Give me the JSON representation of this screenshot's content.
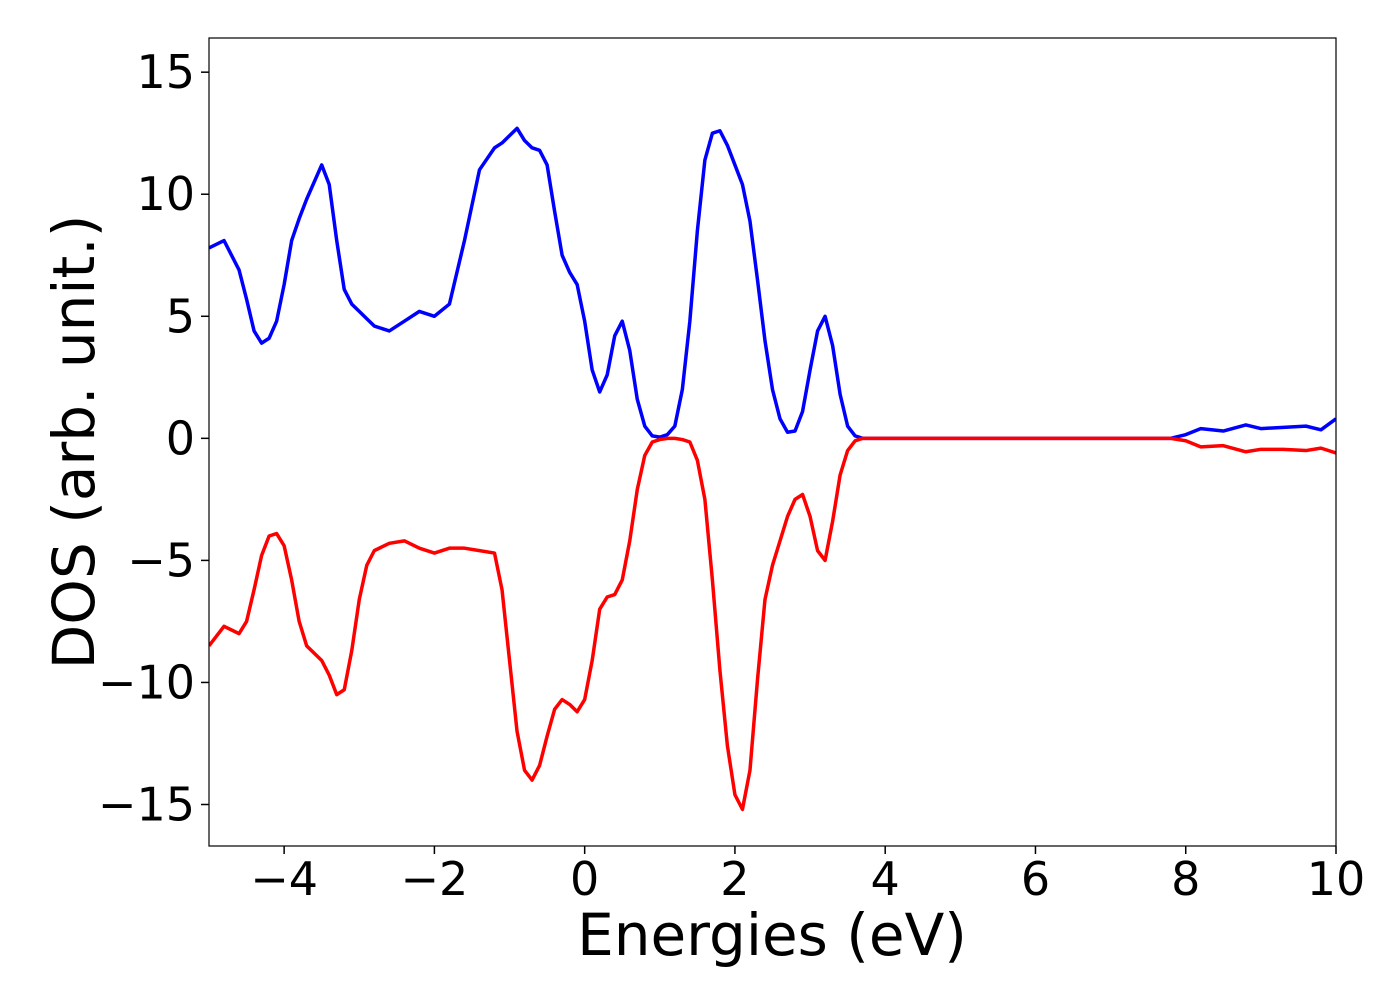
{
  "chart_data": {
    "type": "line",
    "xlabel": "Energies (eV)",
    "ylabel": "DOS (arb. unit.)",
    "xlim": [
      -5,
      10
    ],
    "ylim": [
      -16.7,
      16.4
    ],
    "xticks": [
      {
        "value": -4,
        "label": "−4"
      },
      {
        "value": -2,
        "label": "−2"
      },
      0,
      2,
      4,
      6,
      8,
      10
    ],
    "yticks": [
      {
        "value": -15,
        "label": "−15"
      },
      {
        "value": -10,
        "label": "−10"
      },
      {
        "value": -5,
        "label": "−5"
      },
      0,
      5,
      10,
      15
    ],
    "grid": false,
    "x": [
      -5,
      -4.8,
      -4.6,
      -4.5,
      -4.4,
      -4.3,
      -4.2,
      -4.1,
      -4.0,
      -3.9,
      -3.8,
      -3.7,
      -3.5,
      -3.4,
      -3.3,
      -3.2,
      -3.1,
      -3.0,
      -2.9,
      -2.8,
      -2.6,
      -2.4,
      -2.2,
      -2.0,
      -1.8,
      -1.6,
      -1.4,
      -1.2,
      -1.1,
      -1.0,
      -0.9,
      -0.8,
      -0.7,
      -0.6,
      -0.5,
      -0.4,
      -0.3,
      -0.2,
      -0.1,
      0,
      0.1,
      0.2,
      0.3,
      0.4,
      0.5,
      0.6,
      0.7,
      0.8,
      0.9,
      1.0,
      1.1,
      1.2,
      1.3,
      1.4,
      1.5,
      1.6,
      1.7,
      1.8,
      1.9,
      2.0,
      2.1,
      2.2,
      2.3,
      2.4,
      2.5,
      2.6,
      2.7,
      2.8,
      2.9,
      3.0,
      3.1,
      3.2,
      3.3,
      3.4,
      3.5,
      3.6,
      3.7,
      4,
      6,
      7.8,
      8.0,
      8.2,
      8.5,
      8.8,
      9.0,
      9.3,
      9.6,
      9.8,
      10
    ],
    "series": [
      {
        "color": "#0000ff",
        "values": [
          7.8,
          8.1,
          6.9,
          5.7,
          4.4,
          3.9,
          4.1,
          4.8,
          6.3,
          8.1,
          9.0,
          9.8,
          11.2,
          10.4,
          8.1,
          6.1,
          5.5,
          5.2,
          4.9,
          4.6,
          4.4,
          4.8,
          5.2,
          5.0,
          5.5,
          8.1,
          11.0,
          11.9,
          12.1,
          12.4,
          12.7,
          12.2,
          11.9,
          11.8,
          11.2,
          9.3,
          7.5,
          6.8,
          6.3,
          4.8,
          2.8,
          1.9,
          2.6,
          4.2,
          4.8,
          3.6,
          1.6,
          0.5,
          0.1,
          0.05,
          0.15,
          0.5,
          2.0,
          4.8,
          8.5,
          11.4,
          12.5,
          12.6,
          12.0,
          11.2,
          10.4,
          8.9,
          6.5,
          4.0,
          2.0,
          0.8,
          0.25,
          0.3,
          1.1,
          2.8,
          4.4,
          5.0,
          3.8,
          1.8,
          0.5,
          0.1,
          0,
          0,
          0,
          0,
          0.15,
          0.4,
          0.3,
          0.55,
          0.4,
          0.45,
          0.5,
          0.35,
          0.8
        ]
      },
      {
        "color": "#ff0000",
        "values": [
          -8.5,
          -7.7,
          -8.0,
          -7.5,
          -6.2,
          -4.8,
          -4.0,
          -3.9,
          -4.4,
          -5.8,
          -7.5,
          -8.5,
          -9.1,
          -9.7,
          -10.5,
          -10.3,
          -8.7,
          -6.6,
          -5.2,
          -4.6,
          -4.3,
          -4.2,
          -4.5,
          -4.7,
          -4.5,
          -4.5,
          -4.6,
          -4.7,
          -6.2,
          -9.1,
          -12.0,
          -13.6,
          -14.0,
          -13.4,
          -12.2,
          -11.1,
          -10.7,
          -10.9,
          -11.2,
          -10.7,
          -9.1,
          -7.0,
          -6.5,
          -6.4,
          -5.8,
          -4.2,
          -2.1,
          -0.7,
          -0.15,
          -0.05,
          0,
          0,
          -0.05,
          -0.15,
          -0.9,
          -2.5,
          -5.8,
          -9.5,
          -12.6,
          -14.6,
          -15.2,
          -13.6,
          -9.9,
          -6.6,
          -5.2,
          -4.2,
          -3.2,
          -2.5,
          -2.3,
          -3.2,
          -4.6,
          -5.0,
          -3.4,
          -1.5,
          -0.5,
          -0.1,
          0,
          0,
          0,
          0,
          -0.1,
          -0.35,
          -0.3,
          -0.55,
          -0.45,
          -0.45,
          -0.5,
          -0.4,
          -0.6
        ]
      }
    ]
  }
}
